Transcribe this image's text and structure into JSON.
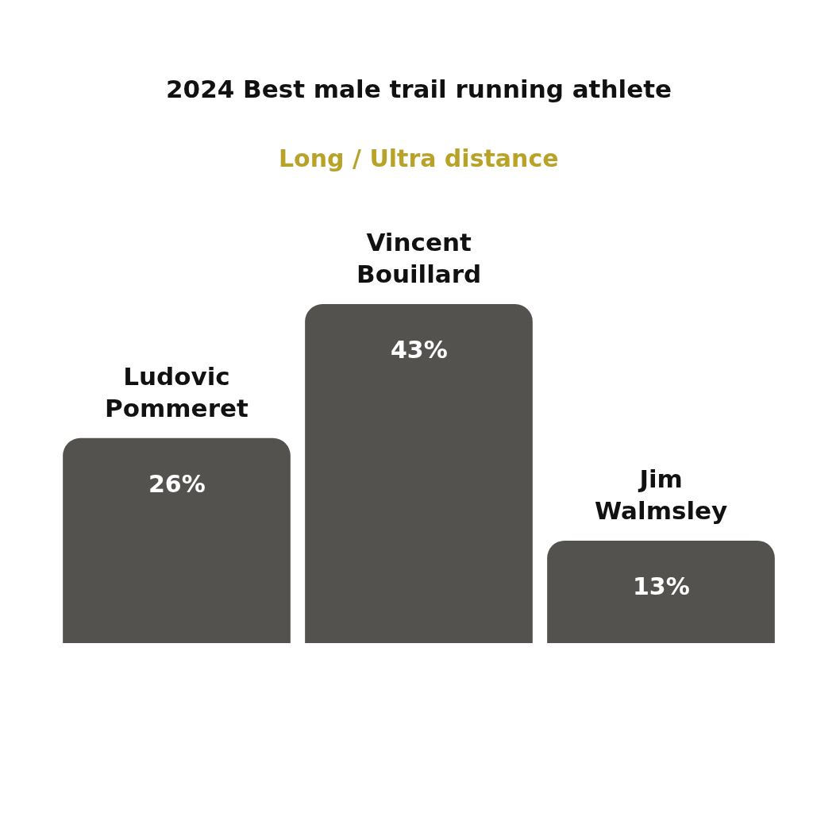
{
  "chart_data": {
    "type": "bar",
    "title": "2024 Best male trail running athlete",
    "subtitle": "Long / Ultra distance",
    "categories": [
      "Ludovic Pommeret",
      "Vincent Bouillard",
      "Jim Walmsley"
    ],
    "values": [
      26,
      43,
      13
    ],
    "value_labels": [
      "26%",
      "43%",
      "13%"
    ],
    "color": "#53524f",
    "tick_labels": "x"
  }
}
